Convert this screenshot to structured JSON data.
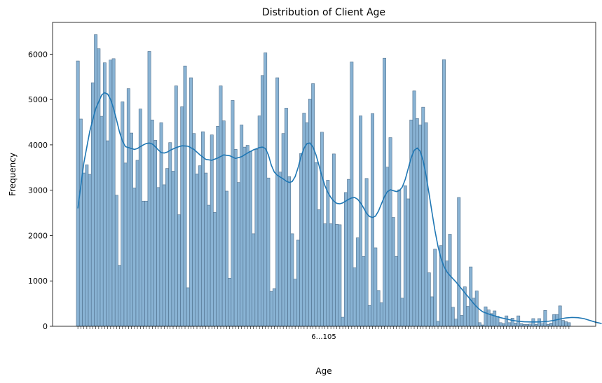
{
  "chart_data": {
    "type": "bar",
    "title": "Distribution of Client Age",
    "xlabel": "Age",
    "ylabel": "Frequency",
    "ylim": [
      0,
      6700
    ],
    "yticks": [
      0,
      1000,
      2000,
      3000,
      4000,
      5000,
      6000
    ],
    "grid": false,
    "legend": "none",
    "categories_first": "6",
    "categories_last": "105",
    "xtick_text": "6…105",
    "colors": {
      "bar_fill": "#89b3d4",
      "bar_edge": "#4f6f8c",
      "kde_line": "#1f77b4"
    },
    "values": [
      5850,
      4570,
      3380,
      3560,
      3350,
      5370,
      6430,
      6120,
      4630,
      5810,
      4090,
      5870,
      5900,
      2890,
      1340,
      4950,
      3600,
      5240,
      4260,
      3050,
      3660,
      4790,
      2760,
      2760,
      6060,
      4550,
      4100,
      3060,
      4490,
      3120,
      3480,
      4050,
      3420,
      5300,
      2460,
      4840,
      5740,
      850,
      5480,
      4250,
      3360,
      3540,
      4290,
      3380,
      2670,
      4220,
      2510,
      4410,
      5300,
      4530,
      2980,
      1060,
      4980,
      3900,
      3170,
      4440,
      3950,
      3990,
      3860,
      2040,
      3900,
      4640,
      5530,
      6030,
      3270,
      770,
      830,
      5480,
      3400,
      4250,
      4810,
      3300,
      2040,
      1040,
      1900,
      3810,
      4700,
      4490,
      5010,
      5350,
      3610,
      2570,
      4280,
      2260,
      3220,
      2260,
      3800,
      2250,
      2240,
      200,
      2950,
      3240,
      5830,
      1290,
      1950,
      4640,
      1540,
      3260,
      460,
      4690,
      1730,
      790,
      520,
      5910,
      3510,
      4160,
      2400,
      1540,
      3010,
      620,
      3100,
      2810,
      4550,
      5190,
      4580,
      4440,
      4830,
      4490,
      1180,
      650,
      1700,
      110,
      1780,
      5880,
      1440,
      2030,
      420,
      160,
      2840,
      240,
      870,
      440,
      1310,
      620,
      780,
      80,
      30,
      430,
      360,
      280,
      340,
      220,
      80,
      60,
      230,
      80,
      180,
      70,
      230,
      60,
      40,
      40,
      50,
      170,
      40,
      170,
      60,
      350,
      40,
      70,
      260,
      260,
      450,
      130,
      100,
      80
    ],
    "kde": [
      [
        0,
        2600
      ],
      [
        2,
        3600
      ],
      [
        4,
        4300
      ],
      [
        6,
        4800
      ],
      [
        8,
        5100
      ],
      [
        9,
        5150
      ],
      [
        10,
        5120
      ],
      [
        11,
        5000
      ],
      [
        12,
        4800
      ],
      [
        13,
        4550
      ],
      [
        14,
        4280
      ],
      [
        15,
        4080
      ],
      [
        16,
        3960
      ],
      [
        17,
        3940
      ],
      [
        18,
        3920
      ],
      [
        19,
        3900
      ],
      [
        20,
        3920
      ],
      [
        21,
        3960
      ],
      [
        22,
        4000
      ],
      [
        23,
        4030
      ],
      [
        24,
        4040
      ],
      [
        25,
        4020
      ],
      [
        26,
        3960
      ],
      [
        27,
        3890
      ],
      [
        28,
        3830
      ],
      [
        29,
        3820
      ],
      [
        30,
        3840
      ],
      [
        31,
        3880
      ],
      [
        33,
        3940
      ],
      [
        35,
        3980
      ],
      [
        37,
        3970
      ],
      [
        39,
        3900
      ],
      [
        41,
        3780
      ],
      [
        43,
        3680
      ],
      [
        45,
        3660
      ],
      [
        47,
        3710
      ],
      [
        49,
        3780
      ],
      [
        51,
        3760
      ],
      [
        53,
        3700
      ],
      [
        55,
        3740
      ],
      [
        57,
        3820
      ],
      [
        59,
        3890
      ],
      [
        61,
        3940
      ],
      [
        62,
        3950
      ],
      [
        63,
        3920
      ],
      [
        64,
        3780
      ],
      [
        65,
        3550
      ],
      [
        66,
        3400
      ],
      [
        67,
        3330
      ],
      [
        68,
        3290
      ],
      [
        69,
        3250
      ],
      [
        70,
        3200
      ],
      [
        71,
        3170
      ],
      [
        72,
        3190
      ],
      [
        73,
        3300
      ],
      [
        74,
        3500
      ],
      [
        75,
        3750
      ],
      [
        76,
        3930
      ],
      [
        77,
        4030
      ],
      [
        78,
        4040
      ],
      [
        79,
        3950
      ],
      [
        80,
        3780
      ],
      [
        81,
        3550
      ],
      [
        82,
        3310
      ],
      [
        83,
        3100
      ],
      [
        84,
        2950
      ],
      [
        85,
        2840
      ],
      [
        86,
        2760
      ],
      [
        87,
        2710
      ],
      [
        88,
        2700
      ],
      [
        89,
        2720
      ],
      [
        90,
        2760
      ],
      [
        91,
        2800
      ],
      [
        92,
        2830
      ],
      [
        93,
        2840
      ],
      [
        94,
        2800
      ],
      [
        95,
        2720
      ],
      [
        96,
        2610
      ],
      [
        97,
        2490
      ],
      [
        98,
        2420
      ],
      [
        99,
        2400
      ],
      [
        100,
        2430
      ],
      [
        101,
        2540
      ],
      [
        102,
        2700
      ],
      [
        103,
        2860
      ],
      [
        104,
        2970
      ],
      [
        105,
        3010
      ],
      [
        106,
        2990
      ],
      [
        107,
        2970
      ],
      [
        108,
        2990
      ],
      [
        109,
        3070
      ],
      [
        110,
        3240
      ],
      [
        111,
        3480
      ],
      [
        112,
        3720
      ],
      [
        113,
        3880
      ],
      [
        114,
        3930
      ],
      [
        115,
        3860
      ],
      [
        116,
        3650
      ],
      [
        117,
        3320
      ],
      [
        118,
        2920
      ],
      [
        119,
        2500
      ],
      [
        120,
        2100
      ],
      [
        121,
        1760
      ],
      [
        122,
        1500
      ],
      [
        123,
        1320
      ],
      [
        124,
        1200
      ],
      [
        125,
        1120
      ],
      [
        126,
        1050
      ],
      [
        127,
        980
      ],
      [
        128,
        900
      ],
      [
        129,
        820
      ],
      [
        130,
        740
      ],
      [
        131,
        660
      ],
      [
        132,
        580
      ],
      [
        133,
        500
      ],
      [
        134,
        430
      ],
      [
        135,
        370
      ],
      [
        136,
        320
      ],
      [
        138,
        270
      ],
      [
        140,
        230
      ],
      [
        142,
        190
      ],
      [
        144,
        160
      ],
      [
        146,
        130
      ],
      [
        148,
        110
      ],
      [
        150,
        100
      ],
      [
        152,
        95
      ],
      [
        154,
        95
      ],
      [
        156,
        100
      ],
      [
        158,
        110
      ],
      [
        160,
        130
      ],
      [
        162,
        160
      ],
      [
        164,
        185
      ],
      [
        166,
        195
      ],
      [
        168,
        190
      ],
      [
        170,
        170
      ],
      [
        172,
        130
      ],
      [
        174,
        90
      ],
      [
        176,
        60
      ]
    ]
  }
}
